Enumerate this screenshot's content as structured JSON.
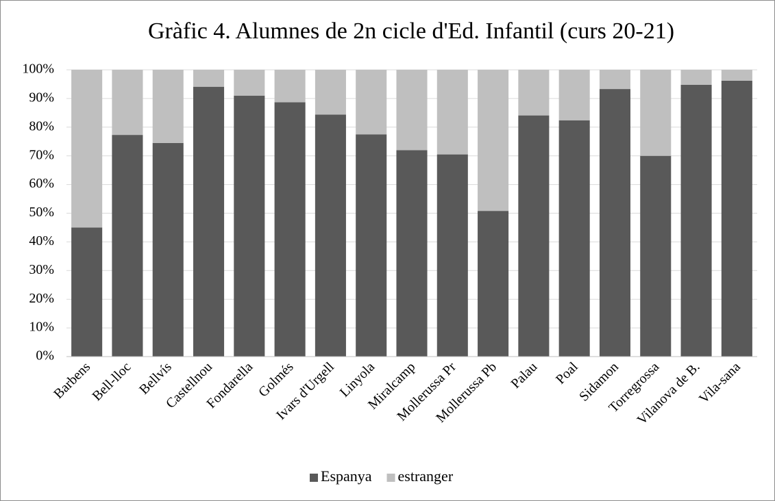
{
  "chart_data": {
    "type": "stacked_bar",
    "title": "Gràfic 4. Alumnes de 2n cicle d'Ed. Infantil (curs 20-21)",
    "categories": [
      "Barbens",
      "Bell-lloc",
      "Bellvís",
      "Castellnou",
      "Fondarella",
      "Golmés",
      "Ivars d'Urgell",
      "Linyola",
      "Miralcamp",
      "Mollerussa Pr",
      "Mollerussa Pb",
      "Palau",
      "Poal",
      "Sidamon",
      "Torregrossa",
      "Vilanova de B.",
      "Vila-sana"
    ],
    "series": [
      {
        "name": "Espanya",
        "color": "#595959",
        "values": [
          45,
          77.3,
          74.5,
          94.1,
          91,
          88.7,
          84.4,
          77.5,
          72,
          70.5,
          50.8,
          84.1,
          82.4,
          93.3,
          70,
          94.8,
          96.2
        ]
      },
      {
        "name": "estranger",
        "color": "#bfbfbf",
        "values": [
          55,
          22.7,
          25.5,
          5.9,
          9,
          11.3,
          15.6,
          22.5,
          28,
          29.5,
          49.2,
          15.9,
          17.6,
          6.7,
          30,
          5.2,
          3.8
        ]
      }
    ],
    "ylim": [
      0,
      100
    ],
    "yticks": [
      {
        "value": 0,
        "label": "0%"
      },
      {
        "value": 10,
        "label": "10%"
      },
      {
        "value": 20,
        "label": "20%"
      },
      {
        "value": 30,
        "label": "30%"
      },
      {
        "value": 40,
        "label": "40%"
      },
      {
        "value": 50,
        "label": "50%"
      },
      {
        "value": 60,
        "label": "60%"
      },
      {
        "value": 70,
        "label": "70%"
      },
      {
        "value": 80,
        "label": "80%"
      },
      {
        "value": 90,
        "label": "90%"
      },
      {
        "value": 100,
        "label": "100%"
      }
    ],
    "grid": true,
    "legend": "bottom"
  }
}
